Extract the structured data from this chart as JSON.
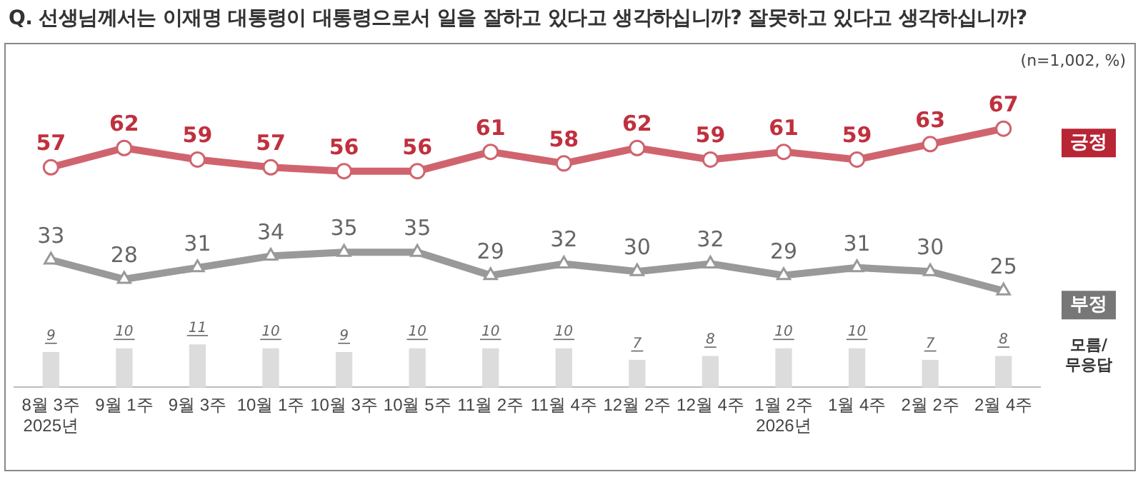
{
  "chart_data": {
    "type": "line",
    "title": "Q. 선생님께서는 이재명 대통령이 대통령으로서 일을 잘하고 있다고 생각하십니까? 잘못하고 있다고 생각하십니까?",
    "subtitle": "(n=1,002, %)",
    "categories": [
      "8월 3주\n2025년",
      "9월 1주",
      "9월 3주",
      "10월 1주",
      "10월 3주",
      "10월 5주",
      "11월 2주",
      "11월 4주",
      "12월 2주",
      "12월 4주",
      "1월 2주\n2026년",
      "1월 4주",
      "2월 2주",
      "2월 4주"
    ],
    "series": [
      {
        "name": "긍정",
        "color": "#d0646e",
        "marker": "circle",
        "values": [
          57,
          62,
          59,
          57,
          56,
          56,
          61,
          58,
          62,
          59,
          61,
          59,
          63,
          67
        ]
      },
      {
        "name": "부정",
        "color": "#999999",
        "marker": "triangle",
        "values": [
          33,
          28,
          31,
          34,
          35,
          35,
          29,
          32,
          30,
          32,
          29,
          31,
          30,
          25
        ]
      },
      {
        "name": "모름/\n무응답",
        "type": "bar",
        "color": "#dcdcdc",
        "values": [
          9,
          10,
          11,
          10,
          9,
          10,
          10,
          10,
          7,
          8,
          10,
          10,
          7,
          8
        ]
      }
    ],
    "data_labels": true,
    "grid": false,
    "legend": "right"
  }
}
